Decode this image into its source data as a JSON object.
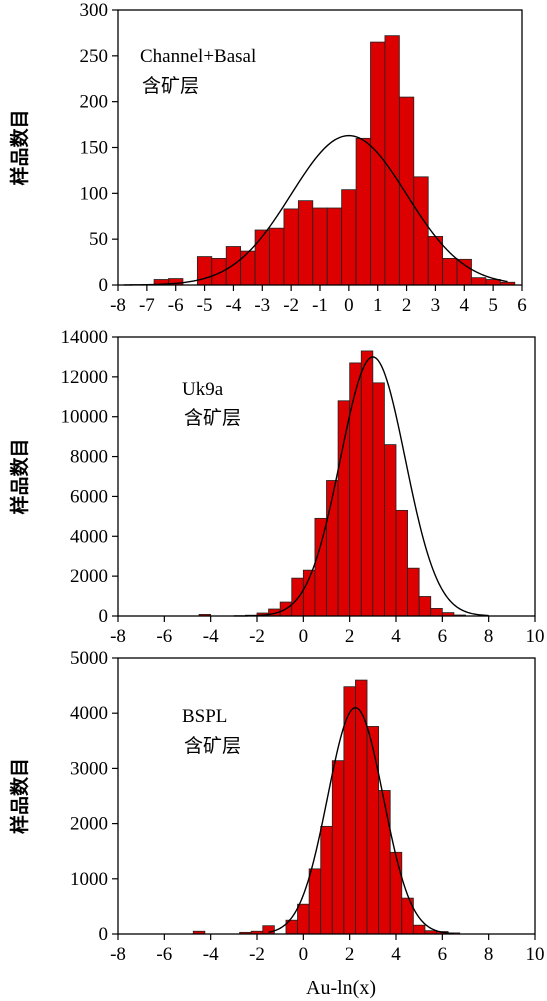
{
  "figure": {
    "x_axis_title": "Au-ln(x)",
    "bar_color": "#dd0000",
    "curve_color": "#000000"
  },
  "chart_data": [
    {
      "type": "bar",
      "series_label_lines": [
        "Channel+Basal",
        "含矿层"
      ],
      "ylabel": "样品数目",
      "xlabel": "",
      "xlim": [
        -8,
        6
      ],
      "ylim": [
        0,
        300
      ],
      "x_ticks": [
        -8,
        -7,
        -6,
        -5,
        -4,
        -3,
        -2,
        -1,
        0,
        1,
        2,
        3,
        4,
        5,
        6
      ],
      "y_ticks": [
        0,
        50,
        100,
        150,
        200,
        250,
        300
      ],
      "bin_width": 0.5,
      "bin_starts": [
        -6.75,
        -6.25,
        -5.25,
        -4.75,
        -4.25,
        -3.75,
        -3.25,
        -2.75,
        -2.25,
        -1.75,
        -1.25,
        -0.75,
        -0.25,
        0.25,
        0.75,
        1.25,
        1.75,
        2.25,
        2.75,
        3.25,
        3.75,
        4.25,
        4.75,
        5.25
      ],
      "values": [
        6,
        7,
        31,
        29,
        42,
        37,
        60,
        62,
        83,
        92,
        84,
        84,
        104,
        160,
        265,
        272,
        205,
        118,
        53,
        29,
        28,
        8,
        6,
        3
      ],
      "fit_curve": {
        "type": "normal",
        "mean": 0.0,
        "sd": 2.0,
        "peak": 163,
        "x_range": [
          -7.8,
          5.5
        ]
      }
    },
    {
      "type": "bar",
      "series_label_lines": [
        "Uk9a",
        "含矿层"
      ],
      "ylabel": "样品数目",
      "xlabel": "",
      "xlim": [
        -8,
        10
      ],
      "ylim": [
        0,
        14000
      ],
      "x_ticks": [
        -8,
        -6,
        -4,
        -2,
        0,
        2,
        4,
        6,
        8,
        10
      ],
      "y_ticks": [
        0,
        2000,
        4000,
        6000,
        8000,
        10000,
        12000,
        14000
      ],
      "bin_width": 0.5,
      "bin_starts": [
        -4.5,
        -2.5,
        -2.0,
        -1.5,
        -1.0,
        -0.5,
        0.0,
        0.5,
        1.0,
        1.5,
        2.0,
        2.5,
        3.0,
        3.5,
        4.0,
        4.5,
        5.0,
        5.5,
        6.0,
        6.5
      ],
      "values": [
        80,
        40,
        150,
        350,
        700,
        1900,
        2300,
        4900,
        6800,
        10800,
        12700,
        13300,
        11700,
        8600,
        5300,
        2400,
        980,
        380,
        170,
        50
      ],
      "fit_curve": {
        "type": "normal",
        "mean": 3.0,
        "sd": 1.4,
        "peak": 13000,
        "x_range": [
          -3.0,
          8.0
        ]
      }
    },
    {
      "type": "bar",
      "series_label_lines": [
        "BSPL",
        "含矿层"
      ],
      "ylabel": "样品数目",
      "xlabel": "Au-ln(x)",
      "xlim": [
        -8,
        10
      ],
      "ylim": [
        0,
        5000
      ],
      "x_ticks": [
        -8,
        -6,
        -4,
        -2,
        0,
        2,
        4,
        6,
        8,
        10
      ],
      "y_ticks": [
        0,
        1000,
        2000,
        3000,
        4000,
        5000
      ],
      "bin_width": 0.5,
      "bin_starts": [
        -4.75,
        -2.75,
        -2.25,
        -1.75,
        -0.75,
        -0.25,
        0.25,
        0.75,
        1.25,
        1.75,
        2.25,
        2.75,
        3.25,
        3.75,
        4.25,
        4.75,
        5.25,
        5.75,
        6.25
      ],
      "values": [
        50,
        30,
        50,
        150,
        250,
        540,
        1180,
        1950,
        3140,
        4480,
        4600,
        3760,
        2600,
        1480,
        650,
        160,
        60,
        45,
        20
      ],
      "fit_curve": {
        "type": "normal",
        "mean": 2.25,
        "sd": 1.2,
        "peak": 4100,
        "x_range": [
          -1.5,
          6.5
        ]
      }
    }
  ]
}
